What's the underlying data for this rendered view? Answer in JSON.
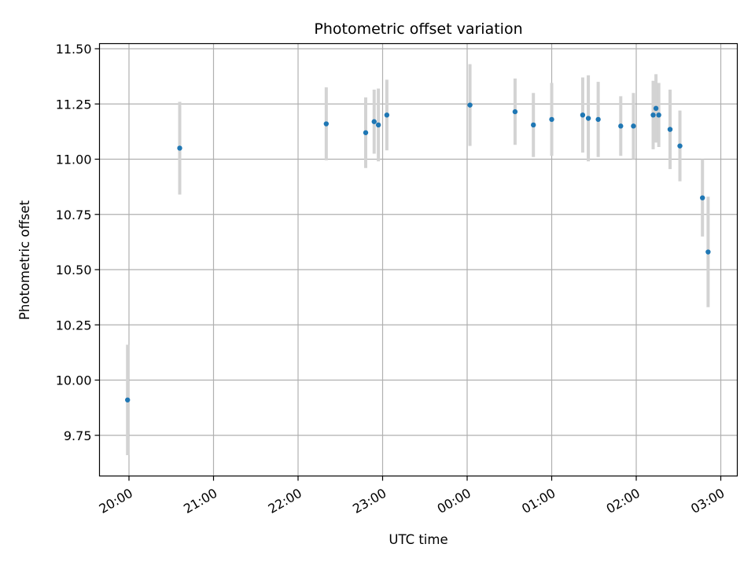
{
  "chart_data": {
    "type": "scatter",
    "title": "Photometric offset variation",
    "xlabel": "UTC time",
    "ylabel": "Photometric offset",
    "x_ticks": [
      "20:00",
      "21:00",
      "22:00",
      "23:00",
      "00:00",
      "01:00",
      "02:00",
      "03:00"
    ],
    "y_ticks": [
      "9.75",
      "10.00",
      "10.25",
      "10.50",
      "10.75",
      "11.00",
      "11.25",
      "11.50"
    ],
    "ylim": [
      9.57,
      11.52
    ],
    "grid": true,
    "colors": {
      "point": "#1f77b4",
      "errorbar": "#d3d3d3",
      "grid": "#b0b0b0"
    },
    "points": [
      {
        "t": "19:59",
        "y": 9.91,
        "err": 0.25
      },
      {
        "t": "20:36",
        "y": 11.05,
        "err": 0.21
      },
      {
        "t": "22:20",
        "y": 11.16,
        "err": 0.165
      },
      {
        "t": "22:48",
        "y": 11.12,
        "err": 0.16
      },
      {
        "t": "22:54",
        "y": 11.17,
        "err": 0.145
      },
      {
        "t": "22:57",
        "y": 11.155,
        "err": 0.165
      },
      {
        "t": "23:03",
        "y": 11.2,
        "err": 0.16
      },
      {
        "t": "00:02",
        "y": 11.245,
        "err": 0.185
      },
      {
        "t": "00:34",
        "y": 11.215,
        "err": 0.15
      },
      {
        "t": "00:47",
        "y": 11.155,
        "err": 0.145
      },
      {
        "t": "01:00",
        "y": 11.18,
        "err": 0.165
      },
      {
        "t": "01:22",
        "y": 11.2,
        "err": 0.17
      },
      {
        "t": "01:26",
        "y": 11.185,
        "err": 0.195
      },
      {
        "t": "01:33",
        "y": 11.18,
        "err": 0.17
      },
      {
        "t": "01:49",
        "y": 11.15,
        "err": 0.135
      },
      {
        "t": "01:58",
        "y": 11.15,
        "err": 0.15
      },
      {
        "t": "02:12",
        "y": 11.2,
        "err": 0.155
      },
      {
        "t": "02:14",
        "y": 11.23,
        "err": 0.155
      },
      {
        "t": "02:16",
        "y": 11.2,
        "err": 0.145
      },
      {
        "t": "02:24",
        "y": 11.135,
        "err": 0.18
      },
      {
        "t": "02:31",
        "y": 11.06,
        "err": 0.16
      },
      {
        "t": "02:47",
        "y": 10.825,
        "err": 0.175
      },
      {
        "t": "02:51",
        "y": 10.58,
        "err": 0.25
      }
    ]
  }
}
